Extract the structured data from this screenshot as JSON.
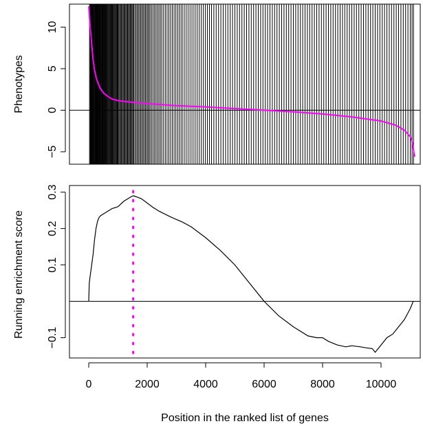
{
  "chart_data": [
    {
      "type": "line",
      "ylabel": "Phenotypes",
      "xlim": [
        0,
        11200
      ],
      "ylim": [
        -6,
        12.6
      ],
      "yticks": [
        10,
        5,
        0,
        -5
      ],
      "ytick_labels": [
        "10",
        "5",
        "0",
        "−5"
      ],
      "hline_y": 0,
      "series": [
        {
          "x": [
            0,
            40,
            100,
            150,
            200,
            250,
            300,
            400,
            500,
            600,
            700,
            800,
            1000,
            1500,
            2000,
            3000,
            4000,
            5000,
            6000,
            7000,
            8000,
            9000,
            10000,
            10500,
            10800,
            11000,
            11080,
            11120,
            11150
          ],
          "y": [
            12.5,
            10.5,
            8.0,
            6.0,
            4.8,
            4.0,
            3.4,
            2.6,
            2.1,
            1.8,
            1.55,
            1.35,
            1.15,
            0.95,
            0.8,
            0.55,
            0.4,
            0.2,
            0.0,
            -0.2,
            -0.45,
            -0.8,
            -1.3,
            -1.8,
            -2.4,
            -3.2,
            -4.0,
            -5.0,
            -5.6
          ]
        }
      ],
      "gene_set_hits": [
        28,
        52,
        70,
        90,
        105,
        120,
        135,
        150,
        170,
        185,
        205,
        220,
        238,
        255,
        270,
        290,
        305,
        320,
        340,
        360,
        375,
        392,
        410,
        430,
        450,
        468,
        485,
        505,
        525,
        545,
        560,
        580,
        600,
        620,
        645,
        665,
        690,
        710,
        735,
        755,
        780,
        800,
        825,
        850,
        875,
        900,
        925,
        950,
        975,
        1000,
        1030,
        1060,
        1090,
        1120,
        1150,
        1180,
        1210,
        1240,
        1270,
        1300,
        1330,
        1360,
        1390,
        1420,
        1450,
        1480,
        1510,
        1540,
        1580,
        1620,
        1660,
        1700,
        1740,
        1780,
        1820,
        1860,
        1900,
        1940,
        1980,
        2020,
        2060,
        2100,
        2150,
        2200,
        2250,
        2300,
        2350,
        2400,
        2450,
        2500,
        2560,
        2620,
        2680,
        2740,
        2800,
        2860,
        2920,
        2980,
        3040,
        3100,
        3160,
        3220,
        3290,
        3360,
        3430,
        3500,
        3570,
        3640,
        3710,
        3780,
        3850,
        3920,
        3990,
        4060,
        4130,
        4200,
        4280,
        4360,
        4440,
        4520,
        4600,
        4680,
        4760,
        4840,
        4920,
        5000,
        5080,
        5160,
        5240,
        5320,
        5400,
        5480,
        5560,
        5640,
        5720,
        5800,
        5880,
        5960,
        6040,
        6120,
        6200,
        6280,
        6360,
        6440,
        6520,
        6600,
        6680,
        6760,
        6840,
        6920,
        7000,
        7080,
        7160,
        7240,
        7320,
        7400,
        7480,
        7560,
        7640,
        7720,
        7800,
        7880,
        7960,
        8040,
        8120,
        8200,
        8280,
        8360,
        8440,
        8520,
        8600,
        8680,
        8760,
        8840,
        8920,
        9000,
        9080,
        9160,
        9240,
        9320,
        9400,
        9480,
        9560,
        9640,
        9720,
        9800,
        9880,
        9960,
        10040,
        10120,
        10200,
        10280,
        10360,
        10440,
        10520,
        10600,
        10680,
        10760,
        10840,
        10920,
        11000,
        11060,
        11110
      ]
    },
    {
      "type": "line",
      "ylabel": "Running enrichment score",
      "xlabel": "Position in the ranked list of genes",
      "xlim": [
        0,
        11200
      ],
      "ylim": [
        -0.15,
        0.305
      ],
      "xticks": [
        0,
        2000,
        4000,
        6000,
        8000,
        10000
      ],
      "xtick_labels": [
        "0",
        "2000",
        "4000",
        "6000",
        "8000",
        "10000"
      ],
      "yticks": [
        0.3,
        0.2,
        0.1,
        -0.1
      ],
      "ytick_labels": [
        "0.3",
        "0.2",
        "0.1",
        "−0.1"
      ],
      "hline_y": 0,
      "vline_x": 1520,
      "series": [
        {
          "x": [
            0,
            20,
            50,
            100,
            150,
            200,
            250,
            300,
            350,
            400,
            500,
            600,
            700,
            800,
            1000,
            1200,
            1400,
            1520,
            1600,
            1800,
            2000,
            2200,
            2400,
            2600,
            2800,
            3000,
            3200,
            3500,
            4000,
            4500,
            5000,
            5500,
            6000,
            6500,
            7000,
            7500,
            7800,
            8000,
            8200,
            8500,
            8800,
            9000,
            9300,
            9500,
            9700,
            9800,
            10000,
            10200,
            10400,
            10600,
            10800,
            11000,
            11100
          ],
          "y": [
            0.0,
            0.05,
            0.07,
            0.1,
            0.13,
            0.17,
            0.2,
            0.22,
            0.23,
            0.235,
            0.24,
            0.245,
            0.25,
            0.255,
            0.26,
            0.275,
            0.285,
            0.29,
            0.288,
            0.282,
            0.27,
            0.258,
            0.248,
            0.24,
            0.232,
            0.225,
            0.218,
            0.205,
            0.175,
            0.14,
            0.1,
            0.05,
            0.0,
            -0.04,
            -0.07,
            -0.095,
            -0.1,
            -0.1,
            -0.11,
            -0.12,
            -0.125,
            -0.122,
            -0.125,
            -0.128,
            -0.13,
            -0.14,
            -0.12,
            -0.1,
            -0.09,
            -0.07,
            -0.05,
            -0.02,
            0.0
          ]
        }
      ]
    }
  ]
}
